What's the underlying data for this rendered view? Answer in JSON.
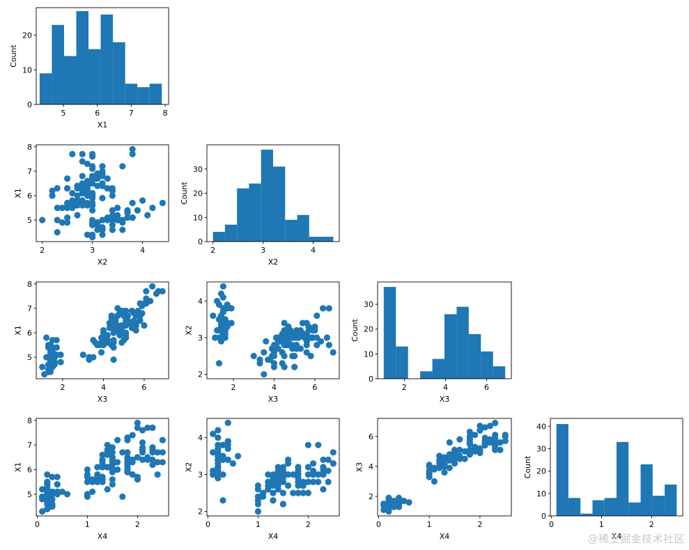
{
  "figure": {
    "watermark": "@稀土掘金技术社区",
    "colors": {
      "primary": "#1f77b4",
      "axes": "#000000",
      "background": "#ffffff"
    }
  },
  "chart_data": [
    {
      "id": "hist-x1",
      "type": "bar",
      "grid": false,
      "xlabel": "X1",
      "ylabel": "Count",
      "xlim": [
        4.2,
        8.1
      ],
      "ylim": [
        0,
        28
      ],
      "xticks": [
        5,
        6,
        7,
        8
      ],
      "yticks": [
        0,
        10,
        20
      ],
      "bins": [
        {
          "x0": 4.3,
          "x1": 4.66,
          "value": 9
        },
        {
          "x0": 4.66,
          "x1": 5.02,
          "value": 23
        },
        {
          "x0": 5.02,
          "x1": 5.38,
          "value": 14
        },
        {
          "x0": 5.38,
          "x1": 5.74,
          "value": 27
        },
        {
          "x0": 5.74,
          "x1": 6.1,
          "value": 16
        },
        {
          "x0": 6.1,
          "x1": 6.46,
          "value": 26
        },
        {
          "x0": 6.46,
          "x1": 6.82,
          "value": 18
        },
        {
          "x0": 6.82,
          "x1": 7.18,
          "value": 6
        },
        {
          "x0": 7.18,
          "x1": 7.54,
          "value": 5
        },
        {
          "x0": 7.54,
          "x1": 7.9,
          "value": 6
        }
      ]
    },
    {
      "id": "scatter-x2-x1",
      "type": "scatter",
      "grid": false,
      "xlabel": "X2",
      "ylabel": "X1",
      "xlim": [
        1.88,
        4.52
      ],
      "ylim": [
        4.12,
        8.08
      ],
      "xticks": [
        2,
        3,
        4
      ],
      "yticks": [
        5,
        6,
        7,
        8
      ],
      "xvar": "X2",
      "yvar": "X1"
    },
    {
      "id": "hist-x2",
      "type": "bar",
      "grid": false,
      "xlabel": "X2",
      "ylabel": "Count",
      "xlim": [
        1.88,
        4.52
      ],
      "ylim": [
        0,
        40
      ],
      "xticks": [
        2,
        3,
        4
      ],
      "yticks": [
        0,
        10,
        20,
        30
      ],
      "bins": [
        {
          "x0": 2.0,
          "x1": 2.24,
          "value": 4
        },
        {
          "x0": 2.24,
          "x1": 2.48,
          "value": 7
        },
        {
          "x0": 2.48,
          "x1": 2.72,
          "value": 22
        },
        {
          "x0": 2.72,
          "x1": 2.96,
          "value": 24
        },
        {
          "x0": 2.96,
          "x1": 3.2,
          "value": 38
        },
        {
          "x0": 3.2,
          "x1": 3.44,
          "value": 31
        },
        {
          "x0": 3.44,
          "x1": 3.68,
          "value": 9
        },
        {
          "x0": 3.68,
          "x1": 3.92,
          "value": 11
        },
        {
          "x0": 3.92,
          "x1": 4.16,
          "value": 2
        },
        {
          "x0": 4.16,
          "x1": 4.4,
          "value": 2
        }
      ]
    },
    {
      "id": "scatter-x3-x1",
      "type": "scatter",
      "grid": false,
      "xlabel": "X3",
      "ylabel": "X1",
      "xlim": [
        0.7,
        7.2
      ],
      "ylim": [
        4.12,
        8.08
      ],
      "xticks": [
        2,
        4,
        6
      ],
      "yticks": [
        5,
        6,
        7,
        8
      ],
      "xvar": "X3",
      "yvar": "X1"
    },
    {
      "id": "scatter-x3-x2",
      "type": "scatter",
      "grid": false,
      "xlabel": "X3",
      "ylabel": "X2",
      "xlim": [
        0.7,
        7.2
      ],
      "ylim": [
        1.88,
        4.52
      ],
      "xticks": [
        2,
        4,
        6
      ],
      "yticks": [
        2,
        3,
        4
      ],
      "xvar": "X3",
      "yvar": "X2"
    },
    {
      "id": "hist-x3",
      "type": "bar",
      "grid": false,
      "xlabel": "X3",
      "ylabel": "Count",
      "xlim": [
        0.7,
        7.2
      ],
      "ylim": [
        0,
        39
      ],
      "xticks": [
        2,
        4,
        6
      ],
      "yticks": [
        0,
        10,
        20,
        30
      ],
      "bins": [
        {
          "x0": 1.0,
          "x1": 1.59,
          "value": 37
        },
        {
          "x0": 1.59,
          "x1": 2.18,
          "value": 13
        },
        {
          "x0": 2.18,
          "x1": 2.77,
          "value": 0
        },
        {
          "x0": 2.77,
          "x1": 3.36,
          "value": 3
        },
        {
          "x0": 3.36,
          "x1": 3.95,
          "value": 8
        },
        {
          "x0": 3.95,
          "x1": 4.54,
          "value": 26
        },
        {
          "x0": 4.54,
          "x1": 5.13,
          "value": 29
        },
        {
          "x0": 5.13,
          "x1": 5.72,
          "value": 18
        },
        {
          "x0": 5.72,
          "x1": 6.31,
          "value": 11
        },
        {
          "x0": 6.31,
          "x1": 6.9,
          "value": 5
        }
      ]
    },
    {
      "id": "scatter-x4-x1",
      "type": "scatter",
      "grid": false,
      "xlabel": "X4",
      "ylabel": "X1",
      "xlim": [
        -0.02,
        2.62
      ],
      "ylim": [
        4.12,
        8.08
      ],
      "xticks": [
        0,
        1,
        2
      ],
      "yticks": [
        5,
        6,
        7,
        8
      ],
      "xvar": "X4",
      "yvar": "X1"
    },
    {
      "id": "scatter-x4-x2",
      "type": "scatter",
      "grid": false,
      "xlabel": "X4",
      "ylabel": "X2",
      "xlim": [
        -0.02,
        2.62
      ],
      "ylim": [
        1.88,
        4.52
      ],
      "xticks": [
        0,
        1,
        2
      ],
      "yticks": [
        2,
        3,
        4
      ],
      "xvar": "X4",
      "yvar": "X2"
    },
    {
      "id": "scatter-x4-x3",
      "type": "scatter",
      "grid": false,
      "xlabel": "X4",
      "ylabel": "X3",
      "xlim": [
        -0.02,
        2.62
      ],
      "ylim": [
        0.7,
        7.2
      ],
      "xticks": [
        0,
        1,
        2
      ],
      "yticks": [
        2,
        4,
        6
      ],
      "xvar": "X4",
      "yvar": "X3"
    },
    {
      "id": "hist-x4",
      "type": "bar",
      "grid": false,
      "xlabel": "X4",
      "ylabel": "Count",
      "xlim": [
        -0.02,
        2.62
      ],
      "ylim": [
        0,
        43.5
      ],
      "xticks": [
        0,
        1,
        2
      ],
      "yticks": [
        0,
        10,
        20,
        30,
        40
      ],
      "bins": [
        {
          "x0": 0.1,
          "x1": 0.34,
          "value": 41
        },
        {
          "x0": 0.34,
          "x1": 0.58,
          "value": 8
        },
        {
          "x0": 0.58,
          "x1": 0.82,
          "value": 1
        },
        {
          "x0": 0.82,
          "x1": 1.06,
          "value": 7
        },
        {
          "x0": 1.06,
          "x1": 1.3,
          "value": 8
        },
        {
          "x0": 1.3,
          "x1": 1.54,
          "value": 33
        },
        {
          "x0": 1.54,
          "x1": 1.78,
          "value": 6
        },
        {
          "x0": 1.78,
          "x1": 2.02,
          "value": 23
        },
        {
          "x0": 2.02,
          "x1": 2.26,
          "value": 9
        },
        {
          "x0": 2.26,
          "x1": 2.5,
          "value": 14
        }
      ]
    }
  ],
  "samples": [
    [
      5.1,
      3.5,
      1.4,
      0.2
    ],
    [
      4.9,
      3.0,
      1.4,
      0.2
    ],
    [
      4.7,
      3.2,
      1.3,
      0.2
    ],
    [
      4.6,
      3.1,
      1.5,
      0.2
    ],
    [
      5.0,
      3.6,
      1.4,
      0.2
    ],
    [
      5.4,
      3.9,
      1.7,
      0.4
    ],
    [
      4.6,
      3.4,
      1.4,
      0.3
    ],
    [
      5.0,
      3.4,
      1.5,
      0.2
    ],
    [
      4.4,
      2.9,
      1.4,
      0.2
    ],
    [
      4.9,
      3.1,
      1.5,
      0.1
    ],
    [
      5.4,
      3.7,
      1.5,
      0.2
    ],
    [
      4.8,
      3.4,
      1.6,
      0.2
    ],
    [
      4.8,
      3.0,
      1.4,
      0.1
    ],
    [
      4.3,
      3.0,
      1.1,
      0.1
    ],
    [
      5.8,
      4.0,
      1.2,
      0.2
    ],
    [
      5.7,
      4.4,
      1.5,
      0.4
    ],
    [
      5.4,
      3.9,
      1.3,
      0.4
    ],
    [
      5.1,
      3.5,
      1.4,
      0.3
    ],
    [
      5.7,
      3.8,
      1.7,
      0.3
    ],
    [
      5.1,
      3.8,
      1.5,
      0.3
    ],
    [
      5.4,
      3.4,
      1.7,
      0.2
    ],
    [
      5.1,
      3.7,
      1.5,
      0.4
    ],
    [
      4.6,
      3.6,
      1.0,
      0.2
    ],
    [
      5.1,
      3.3,
      1.7,
      0.5
    ],
    [
      4.8,
      3.4,
      1.9,
      0.2
    ],
    [
      5.0,
      3.0,
      1.6,
      0.2
    ],
    [
      5.0,
      3.4,
      1.6,
      0.4
    ],
    [
      5.2,
      3.5,
      1.5,
      0.2
    ],
    [
      5.2,
      3.4,
      1.4,
      0.2
    ],
    [
      4.7,
      3.2,
      1.6,
      0.2
    ],
    [
      4.8,
      3.1,
      1.6,
      0.2
    ],
    [
      5.4,
      3.4,
      1.5,
      0.4
    ],
    [
      5.2,
      4.1,
      1.5,
      0.1
    ],
    [
      5.5,
      4.2,
      1.4,
      0.2
    ],
    [
      4.9,
      3.1,
      1.5,
      0.2
    ],
    [
      5.0,
      3.2,
      1.2,
      0.2
    ],
    [
      5.5,
      3.5,
      1.3,
      0.2
    ],
    [
      4.9,
      3.6,
      1.4,
      0.1
    ],
    [
      4.4,
      3.0,
      1.3,
      0.2
    ],
    [
      5.1,
      3.4,
      1.5,
      0.2
    ],
    [
      5.0,
      3.5,
      1.3,
      0.3
    ],
    [
      4.5,
      2.3,
      1.3,
      0.3
    ],
    [
      4.4,
      3.2,
      1.3,
      0.2
    ],
    [
      5.0,
      3.5,
      1.6,
      0.6
    ],
    [
      5.1,
      3.8,
      1.9,
      0.4
    ],
    [
      4.8,
      3.0,
      1.4,
      0.3
    ],
    [
      5.1,
      3.8,
      1.6,
      0.2
    ],
    [
      4.6,
      3.2,
      1.4,
      0.2
    ],
    [
      5.3,
      3.7,
      1.5,
      0.2
    ],
    [
      5.0,
      3.3,
      1.4,
      0.2
    ],
    [
      7.0,
      3.2,
      4.7,
      1.4
    ],
    [
      6.4,
      3.2,
      4.5,
      1.5
    ],
    [
      6.9,
      3.1,
      4.9,
      1.5
    ],
    [
      5.5,
      2.3,
      4.0,
      1.3
    ],
    [
      6.5,
      2.8,
      4.6,
      1.5
    ],
    [
      5.7,
      2.8,
      4.5,
      1.3
    ],
    [
      6.3,
      3.3,
      4.7,
      1.6
    ],
    [
      4.9,
      2.4,
      3.3,
      1.0
    ],
    [
      6.6,
      2.9,
      4.6,
      1.3
    ],
    [
      5.2,
      2.7,
      3.9,
      1.4
    ],
    [
      5.0,
      2.0,
      3.5,
      1.0
    ],
    [
      5.9,
      3.0,
      4.2,
      1.5
    ],
    [
      6.0,
      2.2,
      4.0,
      1.0
    ],
    [
      6.1,
      2.9,
      4.7,
      1.4
    ],
    [
      5.6,
      2.9,
      3.6,
      1.3
    ],
    [
      6.7,
      3.1,
      4.4,
      1.4
    ],
    [
      5.6,
      3.0,
      4.5,
      1.5
    ],
    [
      5.8,
      2.7,
      4.1,
      1.0
    ],
    [
      6.2,
      2.2,
      4.5,
      1.5
    ],
    [
      5.6,
      2.5,
      3.9,
      1.1
    ],
    [
      5.9,
      3.2,
      4.8,
      1.8
    ],
    [
      6.1,
      2.8,
      4.0,
      1.3
    ],
    [
      6.3,
      2.5,
      4.9,
      1.5
    ],
    [
      6.1,
      2.8,
      4.7,
      1.2
    ],
    [
      6.4,
      2.9,
      4.3,
      1.3
    ],
    [
      6.6,
      3.0,
      4.4,
      1.4
    ],
    [
      6.8,
      2.8,
      4.8,
      1.4
    ],
    [
      6.7,
      3.0,
      5.0,
      1.7
    ],
    [
      6.0,
      2.9,
      4.5,
      1.5
    ],
    [
      5.7,
      2.6,
      3.5,
      1.0
    ],
    [
      5.5,
      2.4,
      3.8,
      1.1
    ],
    [
      5.5,
      2.4,
      3.7,
      1.0
    ],
    [
      5.8,
      2.7,
      3.9,
      1.2
    ],
    [
      6.0,
      2.7,
      5.1,
      1.6
    ],
    [
      5.4,
      3.0,
      4.5,
      1.5
    ],
    [
      6.0,
      3.4,
      4.5,
      1.6
    ],
    [
      6.7,
      3.1,
      4.7,
      1.5
    ],
    [
      6.3,
      2.3,
      4.4,
      1.3
    ],
    [
      5.6,
      3.0,
      4.1,
      1.3
    ],
    [
      5.5,
      2.5,
      4.0,
      1.3
    ],
    [
      5.5,
      2.6,
      4.4,
      1.2
    ],
    [
      6.1,
      3.0,
      4.6,
      1.4
    ],
    [
      5.8,
      2.6,
      4.0,
      1.2
    ],
    [
      5.0,
      2.3,
      3.3,
      1.0
    ],
    [
      5.6,
      2.7,
      4.2,
      1.3
    ],
    [
      5.7,
      3.0,
      4.2,
      1.2
    ],
    [
      5.7,
      2.9,
      4.2,
      1.3
    ],
    [
      6.2,
      2.9,
      4.3,
      1.3
    ],
    [
      5.1,
      2.5,
      3.0,
      1.1
    ],
    [
      5.7,
      2.8,
      4.1,
      1.3
    ],
    [
      6.3,
      3.3,
      6.0,
      2.5
    ],
    [
      5.8,
      2.7,
      5.1,
      1.9
    ],
    [
      7.1,
      3.0,
      5.9,
      2.1
    ],
    [
      6.3,
      2.9,
      5.6,
      1.8
    ],
    [
      6.5,
      3.0,
      5.8,
      2.2
    ],
    [
      7.6,
      3.0,
      6.6,
      2.1
    ],
    [
      4.9,
      2.5,
      4.5,
      1.7
    ],
    [
      7.3,
      2.9,
      6.3,
      1.8
    ],
    [
      6.7,
      2.5,
      5.8,
      1.8
    ],
    [
      7.2,
      3.6,
      6.1,
      2.5
    ],
    [
      6.5,
      3.2,
      5.1,
      2.0
    ],
    [
      6.4,
      2.7,
      5.3,
      1.9
    ],
    [
      6.8,
      3.0,
      5.5,
      2.1
    ],
    [
      5.7,
      2.5,
      5.0,
      2.0
    ],
    [
      5.8,
      2.8,
      5.1,
      2.4
    ],
    [
      6.4,
      3.2,
      5.3,
      2.3
    ],
    [
      6.5,
      3.0,
      5.5,
      1.8
    ],
    [
      7.7,
      3.8,
      6.7,
      2.2
    ],
    [
      7.7,
      2.6,
      6.9,
      2.3
    ],
    [
      6.0,
      2.2,
      5.0,
      1.5
    ],
    [
      6.9,
      3.2,
      5.7,
      2.3
    ],
    [
      5.6,
      2.8,
      4.9,
      2.0
    ],
    [
      7.7,
      2.8,
      6.7,
      2.0
    ],
    [
      6.3,
      2.7,
      4.9,
      1.8
    ],
    [
      6.7,
      3.3,
      5.7,
      2.1
    ],
    [
      7.2,
      3.2,
      6.0,
      1.8
    ],
    [
      6.2,
      2.8,
      4.8,
      1.8
    ],
    [
      6.1,
      3.0,
      4.9,
      1.8
    ],
    [
      6.4,
      2.8,
      5.6,
      2.1
    ],
    [
      7.2,
      3.0,
      5.8,
      1.6
    ],
    [
      7.4,
      2.8,
      6.1,
      1.9
    ],
    [
      7.9,
      3.8,
      6.4,
      2.0
    ],
    [
      6.4,
      2.8,
      5.6,
      2.2
    ],
    [
      6.3,
      2.8,
      5.1,
      1.5
    ],
    [
      6.1,
      2.6,
      5.6,
      1.4
    ],
    [
      7.7,
      3.0,
      6.1,
      2.3
    ],
    [
      6.3,
      3.4,
      5.6,
      2.4
    ],
    [
      6.4,
      3.1,
      5.5,
      1.8
    ],
    [
      6.0,
      3.0,
      4.8,
      1.8
    ],
    [
      6.9,
      3.1,
      5.4,
      2.1
    ],
    [
      6.7,
      3.1,
      5.6,
      2.4
    ],
    [
      6.9,
      3.1,
      5.1,
      2.3
    ],
    [
      5.8,
      2.7,
      5.1,
      1.9
    ],
    [
      6.8,
      3.2,
      5.9,
      2.3
    ],
    [
      6.7,
      3.3,
      5.7,
      2.5
    ],
    [
      6.7,
      3.0,
      5.2,
      2.3
    ],
    [
      6.3,
      2.5,
      5.0,
      1.9
    ],
    [
      6.5,
      3.0,
      5.2,
      2.0
    ],
    [
      6.2,
      3.4,
      5.4,
      2.3
    ],
    [
      5.9,
      3.0,
      5.1,
      1.8
    ]
  ]
}
